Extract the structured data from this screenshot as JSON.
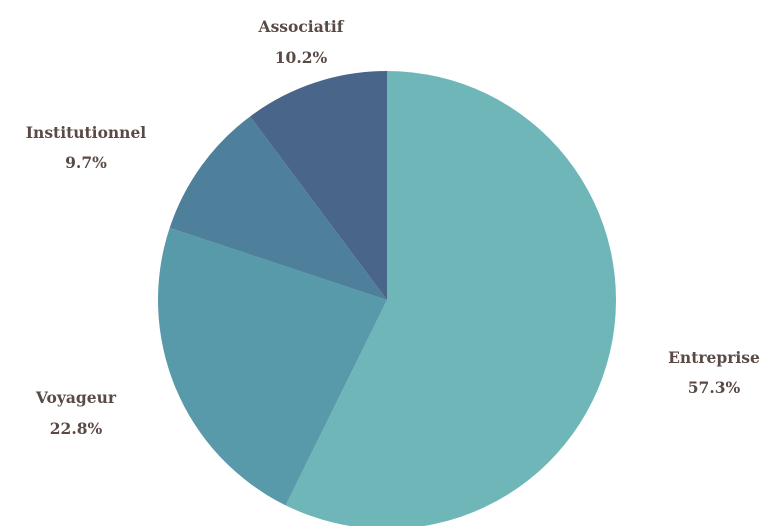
{
  "chart_data": {
    "type": "pie",
    "title": "",
    "start_angle_deg": 0,
    "direction": "clockwise",
    "label_color": "#5a4a45",
    "slices": [
      {
        "label": "Entreprise",
        "value": 57.3,
        "display": "57.3%",
        "color": "#6fb6b9"
      },
      {
        "label": "Voyageur",
        "value": 22.8,
        "display": "22.8%",
        "color": "#5899aa"
      },
      {
        "label": "Institutionnel",
        "value": 9.7,
        "display": "9.7%",
        "color": "#4e7f9b"
      },
      {
        "label": "Associatif",
        "value": 10.2,
        "display": "10.2%",
        "color": "#4a658a"
      }
    ]
  }
}
